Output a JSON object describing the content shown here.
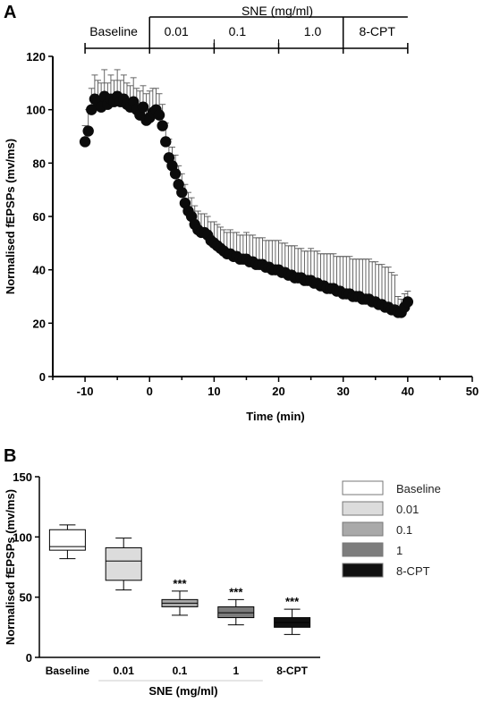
{
  "panel_a": {
    "letter": "A",
    "condition_header": "SNE (mg/ml)",
    "condition_labels": [
      "Baseline",
      "0.01",
      "0.1",
      "1.0",
      "8-CPT"
    ],
    "boundaries_min": [
      -10,
      0,
      10,
      20,
      30,
      40
    ],
    "chart_data": {
      "type": "scatter",
      "xlabel": "Time (min)",
      "ylabel": "Normalised fEPSPs (mv/ms)",
      "xlim": [
        -15,
        50
      ],
      "ylim": [
        0,
        120
      ],
      "xticks": [
        -10,
        0,
        10,
        20,
        30,
        40,
        50
      ],
      "yticks": [
        0,
        20,
        40,
        60,
        80,
        100,
        120
      ],
      "error_bars": "upper SEM",
      "series": [
        {
          "x": [
            -10,
            -9.5,
            -9,
            -8.5,
            -8,
            -7.5,
            -7,
            -6.5,
            -6,
            -5.5,
            -5,
            -4.5,
            -4,
            -3.5,
            -3,
            -2.5,
            -2,
            -1.5,
            -1,
            -0.5,
            0,
            0.5,
            1,
            1.5,
            2,
            2.5,
            3,
            3.5,
            4,
            4.5,
            5,
            5.5,
            6,
            6.5,
            7,
            7.5,
            8,
            8.5,
            9,
            9.5,
            10,
            10.5,
            11,
            11.5,
            12,
            12.5,
            13,
            13.5,
            14,
            14.5,
            15,
            15.5,
            16,
            16.5,
            17,
            17.5,
            18,
            18.5,
            19,
            19.5,
            20,
            20.5,
            21,
            21.5,
            22,
            22.5,
            23,
            23.5,
            24,
            24.5,
            25,
            25.5,
            26,
            26.5,
            27,
            27.5,
            28,
            28.5,
            29,
            29.5,
            30,
            30.5,
            31,
            31.5,
            32,
            32.5,
            33,
            33.5,
            34,
            34.5,
            35,
            35.5,
            36,
            36.5,
            37,
            37.5,
            38,
            38.5,
            39,
            39.5,
            40
          ],
          "y": [
            88,
            92,
            100,
            104,
            103,
            101,
            105,
            102,
            104,
            103,
            105,
            103,
            104,
            102,
            101,
            103,
            100,
            98,
            101,
            96,
            97,
            99,
            100,
            98,
            94,
            88,
            82,
            79,
            76,
            72,
            69,
            65,
            62,
            60,
            57,
            55,
            54,
            54,
            53,
            51,
            50,
            49,
            48,
            47,
            46,
            46,
            45,
            45,
            44,
            44,
            44,
            43,
            43,
            42,
            42,
            42,
            41,
            41,
            40,
            40,
            40,
            39,
            39,
            38,
            38,
            37,
            37,
            37,
            36,
            36,
            36,
            35,
            35,
            34,
            34,
            33,
            33,
            33,
            32,
            32,
            31,
            31,
            31,
            30,
            30,
            30,
            29,
            29,
            29,
            28,
            28,
            27,
            27,
            26,
            26,
            25,
            25,
            24,
            24,
            26,
            28
          ],
          "err": [
            6,
            8,
            8,
            9,
            8,
            9,
            10,
            8,
            9,
            8,
            10,
            8,
            9,
            8,
            8,
            9,
            8,
            9,
            8,
            10,
            10,
            9,
            8,
            8,
            8,
            7,
            7,
            7,
            7,
            7,
            7,
            7,
            7,
            7,
            7,
            7,
            7,
            7,
            7,
            7,
            8,
            8,
            8,
            8,
            8,
            9,
            9,
            9,
            9,
            9,
            10,
            10,
            10,
            10,
            10,
            10,
            10,
            10,
            11,
            11,
            11,
            11,
            11,
            11,
            11,
            12,
            11,
            11,
            11,
            11,
            12,
            12,
            12,
            12,
            12,
            13,
            13,
            13,
            13,
            13,
            14,
            14,
            14,
            14,
            14,
            14,
            15,
            15,
            15,
            15,
            15,
            15,
            15,
            15,
            15,
            14,
            13,
            6,
            5,
            5,
            4
          ]
        }
      ]
    }
  },
  "panel_b": {
    "letter": "B",
    "chart_data": {
      "type": "box",
      "categories": [
        "Baseline",
        "0.01",
        "0.1",
        "1",
        "8-CPT"
      ],
      "xlabel": "SNE (mg/ml)",
      "ylabel": "Normalised fEPSPs (mv/ms)",
      "ylim": [
        0,
        150
      ],
      "yticks": [
        0,
        50,
        100,
        150
      ],
      "boxes": [
        {
          "whisker_low": 82,
          "q1": 89,
          "median": 92,
          "q3": 106,
          "whisker_high": 110,
          "significance": ""
        },
        {
          "whisker_low": 56,
          "q1": 64,
          "median": 80,
          "q3": 91,
          "whisker_high": 99,
          "significance": ""
        },
        {
          "whisker_low": 35,
          "q1": 42,
          "median": 45,
          "q3": 48,
          "whisker_high": 55,
          "significance": "***"
        },
        {
          "whisker_low": 27,
          "q1": 33,
          "median": 37,
          "q3": 42,
          "whisker_high": 48,
          "significance": "***"
        },
        {
          "whisker_low": 19,
          "q1": 25,
          "median": 29,
          "q3": 33,
          "whisker_high": 40,
          "significance": "***"
        }
      ],
      "legend": {
        "position": "right",
        "entries": [
          "Baseline",
          "0.01",
          "0.1",
          "1",
          "8-CPT"
        ]
      }
    },
    "colors": [
      "#ffffff",
      "#dcdcdc",
      "#a9a9a9",
      "#7d7d7d",
      "#111111"
    ]
  }
}
